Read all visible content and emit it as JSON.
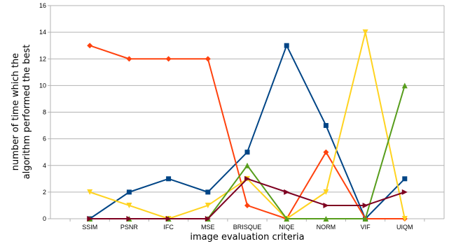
{
  "chart_data": {
    "type": "line",
    "title": "",
    "xlabel": "image evaluation criteria",
    "ylabel_lines": [
      "number of time which the",
      "algorithm performed the best"
    ],
    "categories": [
      "SSIM",
      "PSNR",
      "IFC",
      "MSE",
      "BRISQUE",
      "NIQE",
      "NORM",
      "VIF",
      "UIQM"
    ],
    "ylim": [
      0,
      16
    ],
    "yticks": [
      0,
      2,
      4,
      6,
      8,
      10,
      12,
      14,
      16
    ],
    "grid": "horizontal",
    "legend": "none",
    "series": [
      {
        "color": "#004586",
        "marker": "square",
        "values": [
          0,
          2,
          3,
          2,
          5,
          13,
          7,
          0,
          3
        ]
      },
      {
        "color": "#ff420e",
        "marker": "diamond",
        "values": [
          13,
          12,
          12,
          12,
          1,
          0,
          5,
          0,
          0
        ]
      },
      {
        "color": "#ffd320",
        "marker": "triangle-down",
        "values": [
          2,
          1,
          0,
          1,
          3,
          0,
          2,
          14,
          0
        ]
      },
      {
        "color": "#579d1c",
        "marker": "triangle-up",
        "values": [
          0,
          0,
          0,
          0,
          4,
          0,
          0,
          0,
          10
        ]
      },
      {
        "color": "#7e0021",
        "marker": "triangle-right",
        "values": [
          0,
          0,
          0,
          0,
          3,
          2,
          1,
          1,
          2
        ]
      }
    ]
  }
}
